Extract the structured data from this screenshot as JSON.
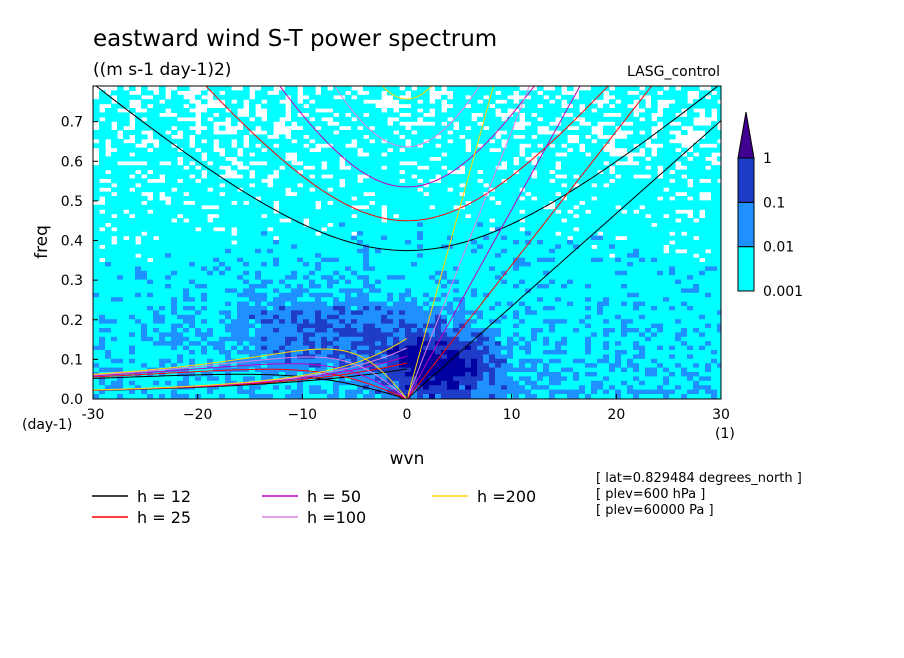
{
  "chart_data": {
    "type": "heatmap",
    "title": "eastward wind S-T power spectrum",
    "units": "((m s-1 day-1)2)",
    "run_label": "LASG_control",
    "xlabel": "wvn",
    "ylabel": "freq",
    "x_unit": "(1)",
    "y_unit": "(day-1)",
    "xlim": [
      -30,
      30
    ],
    "ylim": [
      0,
      0.79
    ],
    "x_ticks": [
      -30,
      -20,
      -10,
      0,
      10,
      20,
      30
    ],
    "x_tick_labels": [
      "-30",
      "−20",
      "−10",
      "0",
      "10",
      "20",
      "30"
    ],
    "y_ticks": [
      0,
      0.1,
      0.2,
      0.3,
      0.4,
      0.5,
      0.6,
      0.7
    ],
    "y_tick_labels": [
      "0.0",
      "0.1",
      "0.2",
      "0.3",
      "0.4",
      "0.5",
      "0.6",
      "0.7"
    ],
    "colorbar": {
      "levels": [
        "0.001",
        "0.01",
        "0.1",
        "1"
      ],
      "colors": [
        "#00ffff",
        "#1e90ff",
        "#1e3cc8",
        "#0000a0",
        "#400090"
      ]
    },
    "dispersion_curves": [
      {
        "label": "h = 12",
        "h": 12,
        "color": "#000000"
      },
      {
        "label": "h = 25",
        "h": 25,
        "color": "#ff0000"
      },
      {
        "label": "h = 50",
        "h": 50,
        "color": "#c000c0"
      },
      {
        "label": "h =100",
        "h": 100,
        "color": "#e080e0"
      },
      {
        "label": "h =200",
        "h": 200,
        "color": "#ffd700"
      }
    ],
    "annotations": [
      "[ lat=0.829484 degrees_north ]",
      "[ plev=600 hPa ]",
      "[ plev=60000 Pa ]"
    ]
  }
}
